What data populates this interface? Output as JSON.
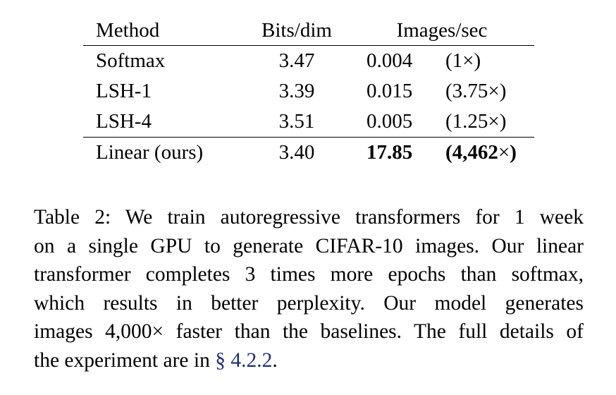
{
  "table": {
    "headers": {
      "method": "Method",
      "bits": "Bits/dim",
      "images": "Images/sec"
    },
    "rows": [
      {
        "method": "Softmax",
        "bits": "3.47",
        "ips": "0.004",
        "speedup": "(1×)"
      },
      {
        "method": "LSH-1",
        "bits": "3.39",
        "ips": "0.015",
        "speedup": "(3.75×)"
      },
      {
        "method": "LSH-4",
        "bits": "3.51",
        "ips": "0.005",
        "speedup": "(1.25×)"
      },
      {
        "method": "Linear (ours)",
        "bits": "3.40",
        "ips": "17.85",
        "speedup_open": "(",
        "speedup_value": "4,462",
        "speedup_close": "×)"
      }
    ]
  },
  "caption": {
    "lines": [
      "Table 2:  We train autoregressive transformers for 1 week",
      "on a single GPU to generate CIFAR-10 images. Our linear",
      "transformer completes 3 times more epochs than softmax,",
      "which results in better perplexity.  Our model generates",
      "images 4,000× faster than the baselines. The full details of"
    ],
    "last_line_prefix": "the experiment are in ",
    "section_symbol": "§",
    "section_ref": "4.2.2",
    "last_line_suffix": ".",
    "link_color": "#1f2d7a"
  }
}
